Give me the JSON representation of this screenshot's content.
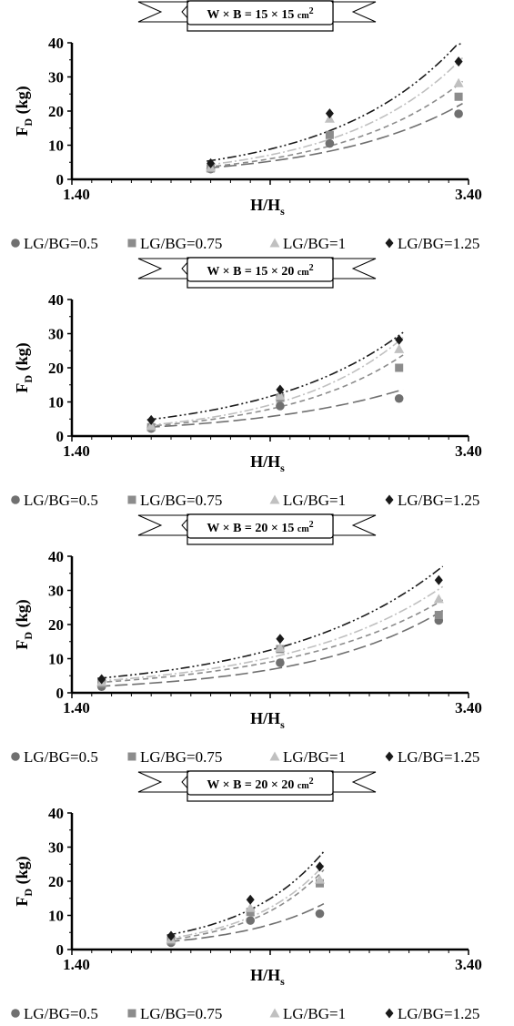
{
  "series_styles": [
    {
      "name": "LG/BG=0.5",
      "marker": "circle",
      "color": "#707070",
      "dash": "14,5"
    },
    {
      "name": "LG/BG=0.75",
      "marker": "square",
      "color": "#8c8c8c",
      "dash": "6,4"
    },
    {
      "name": "LG/BG=1",
      "marker": "triangle",
      "color": "#c0c0c0",
      "dash": "10,3,2,3"
    },
    {
      "name": "LG/BG=1.25",
      "marker": "diamond",
      "color": "#1a1a1a",
      "dash": "10,3,2,3,2,3"
    }
  ],
  "chart_data": [
    {
      "type": "scatter",
      "title": {
        "pre": "W × B = 15 × 15 ",
        "unit": "cm",
        "sup": "2"
      },
      "xlabel": {
        "main": "H/H",
        "sub": "s"
      },
      "ylabel": {
        "main": "F",
        "sub": "D",
        "rest": " (kg)"
      },
      "xlim": [
        1.4,
        3.4
      ],
      "ylim": [
        0,
        40
      ],
      "x_tick_labels": [
        "1.40",
        "3.40"
      ],
      "y_tick_labels": [
        "0",
        "10",
        "20",
        "30",
        "40"
      ],
      "legend_position": "bottom",
      "trendline": "exponential",
      "series": [
        {
          "name": "LG/BG=0.5",
          "x": [
            2.1,
            2.7,
            3.35
          ],
          "y": [
            3.0,
            10.5,
            19.2
          ]
        },
        {
          "name": "LG/BG=0.75",
          "x": [
            2.1,
            2.7,
            3.35
          ],
          "y": [
            3.2,
            13.0,
            24.2
          ]
        },
        {
          "name": "LG/BG=1",
          "x": [
            2.1,
            2.7,
            3.35
          ],
          "y": [
            3.5,
            17.8,
            28.2
          ]
        },
        {
          "name": "LG/BG=1.25",
          "x": [
            2.1,
            2.7,
            3.35
          ],
          "y": [
            4.7,
            19.3,
            34.5
          ]
        }
      ]
    },
    {
      "type": "scatter",
      "title": {
        "pre": "W × B = 15 × 20 ",
        "unit": "cm",
        "sup": "2"
      },
      "xlabel": {
        "main": "H/H",
        "sub": "s"
      },
      "ylabel": {
        "main": "F",
        "sub": "D",
        "rest": " (kg)"
      },
      "xlim": [
        1.4,
        3.4
      ],
      "ylim": [
        0,
        40
      ],
      "x_tick_labels": [
        "1.40",
        "3.40"
      ],
      "y_tick_labels": [
        "0",
        "10",
        "20",
        "30",
        "40"
      ],
      "legend_position": "bottom",
      "trendline": "exponential",
      "series": [
        {
          "name": "LG/BG=0.5",
          "x": [
            1.8,
            2.45,
            3.05
          ],
          "y": [
            2.2,
            8.8,
            11.0
          ]
        },
        {
          "name": "LG/BG=0.75",
          "x": [
            1.8,
            2.45,
            3.05
          ],
          "y": [
            2.6,
            11.2,
            20.0
          ]
        },
        {
          "name": "LG/BG=1",
          "x": [
            1.8,
            2.45,
            3.05
          ],
          "y": [
            3.0,
            11.8,
            25.5
          ]
        },
        {
          "name": "LG/BG=1.25",
          "x": [
            1.8,
            2.45,
            3.05
          ],
          "y": [
            4.7,
            13.6,
            28.2
          ]
        }
      ]
    },
    {
      "type": "scatter",
      "title": {
        "pre": "W × B = 20 × 15 ",
        "unit": "cm",
        "sup": "2"
      },
      "xlabel": {
        "main": "H/H",
        "sub": "s"
      },
      "ylabel": {
        "main": "F",
        "sub": "D",
        "rest": " (kg)"
      },
      "xlim": [
        1.4,
        3.4
      ],
      "ylim": [
        0,
        40
      ],
      "x_tick_labels": [
        "1.40",
        "3.40"
      ],
      "y_tick_labels": [
        "0",
        "10",
        "20",
        "30",
        "40"
      ],
      "legend_position": "bottom",
      "trendline": "exponential",
      "series": [
        {
          "name": "LG/BG=0.5",
          "x": [
            1.55,
            2.45,
            3.25
          ],
          "y": [
            1.8,
            8.8,
            21.2
          ]
        },
        {
          "name": "LG/BG=0.75",
          "x": [
            1.55,
            2.45,
            3.25
          ],
          "y": [
            2.7,
            12.8,
            22.8
          ]
        },
        {
          "name": "LG/BG=1",
          "x": [
            1.55,
            2.45,
            3.25
          ],
          "y": [
            3.2,
            13.2,
            27.5
          ]
        },
        {
          "name": "LG/BG=1.25",
          "x": [
            1.55,
            2.45,
            3.25
          ],
          "y": [
            4.0,
            15.8,
            33.0
          ]
        }
      ]
    },
    {
      "type": "scatter",
      "title": {
        "pre": "W × B = 20 × 20 ",
        "unit": "cm",
        "sup": "2"
      },
      "xlabel": {
        "main": "H/H",
        "sub": "s"
      },
      "ylabel": {
        "main": "F",
        "sub": "D",
        "rest": " (kg)"
      },
      "xlim": [
        1.4,
        3.4
      ],
      "ylim": [
        0,
        40
      ],
      "x_tick_labels": [
        "1.40",
        "3.40"
      ],
      "y_tick_labels": [
        "0",
        "10",
        "20",
        "30",
        "40"
      ],
      "legend_position": "bottom",
      "trendline": "exponential",
      "series": [
        {
          "name": "LG/BG=0.5",
          "x": [
            1.9,
            2.3,
            2.65
          ],
          "y": [
            2.0,
            8.5,
            10.5
          ]
        },
        {
          "name": "LG/BG=0.75",
          "x": [
            1.9,
            2.3,
            2.65
          ],
          "y": [
            2.6,
            11.0,
            19.4
          ]
        },
        {
          "name": "LG/BG=1",
          "x": [
            1.9,
            2.3,
            2.65
          ],
          "y": [
            3.0,
            12.2,
            20.5
          ]
        },
        {
          "name": "LG/BG=1.25",
          "x": [
            1.9,
            2.3,
            2.65
          ],
          "y": [
            4.0,
            14.6,
            24.3
          ]
        }
      ]
    }
  ]
}
